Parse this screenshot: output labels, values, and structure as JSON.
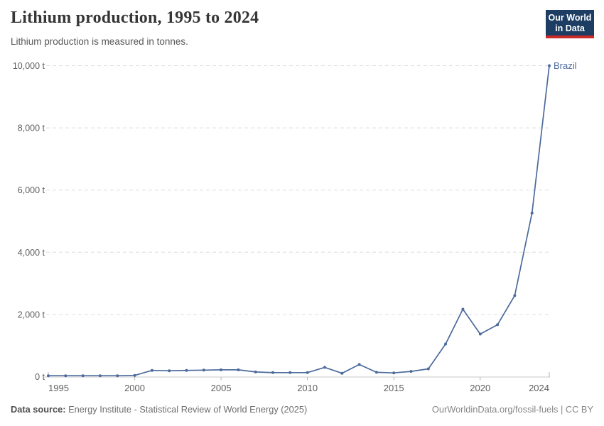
{
  "header": {
    "title": "Lithium production, 1995 to 2024",
    "subtitle": "Lithium production is measured in tonnes.",
    "logo": {
      "line1": "Our World",
      "line2": "in Data"
    }
  },
  "chart_data": {
    "type": "line",
    "title": "Lithium production, 1995 to 2024",
    "unit": "tonnes",
    "entity": "Brazil",
    "x": [
      1995,
      1996,
      1997,
      1998,
      1999,
      2000,
      2001,
      2002,
      2003,
      2004,
      2005,
      2006,
      2007,
      2008,
      2009,
      2010,
      2011,
      2012,
      2013,
      2014,
      2015,
      2016,
      2017,
      2018,
      2019,
      2020,
      2021,
      2022,
      2023,
      2024
    ],
    "values": [
      30,
      30,
      30,
      30,
      30,
      40,
      200,
      190,
      200,
      210,
      220,
      220,
      150,
      130,
      130,
      130,
      300,
      110,
      390,
      140,
      120,
      170,
      250,
      1050,
      2170,
      1370,
      1670,
      2610,
      5260,
      10000
    ],
    "xlim": [
      1995,
      2024
    ],
    "ylim": [
      0,
      10000
    ],
    "xticks": [
      1995,
      2000,
      2005,
      2010,
      2015,
      2020,
      2024
    ],
    "yticks": [
      0,
      2000,
      4000,
      6000,
      8000,
      10000
    ],
    "ytick_labels": [
      "0 t",
      "2,000 t",
      "4,000 t",
      "6,000 t",
      "8,000 t",
      "10,000 t"
    ],
    "grid": "horizontal-dashed",
    "legend_position": "end-of-line-label",
    "line_color": "#4c6a9c",
    "label_color": "#4c6a9c"
  },
  "footer": {
    "source_label": "Data source:",
    "source_text": "Energy Institute - Statistical Review of World Energy (2025)",
    "credit": "OurWorldinData.org/fossil-fuels | CC BY"
  },
  "colors": {
    "logo_bg": "#1d3d63",
    "logo_accent": "#cb2a27",
    "grid": "#dddddd",
    "axis": "#c9c9c9",
    "tick_text": "#5f5f5f"
  }
}
